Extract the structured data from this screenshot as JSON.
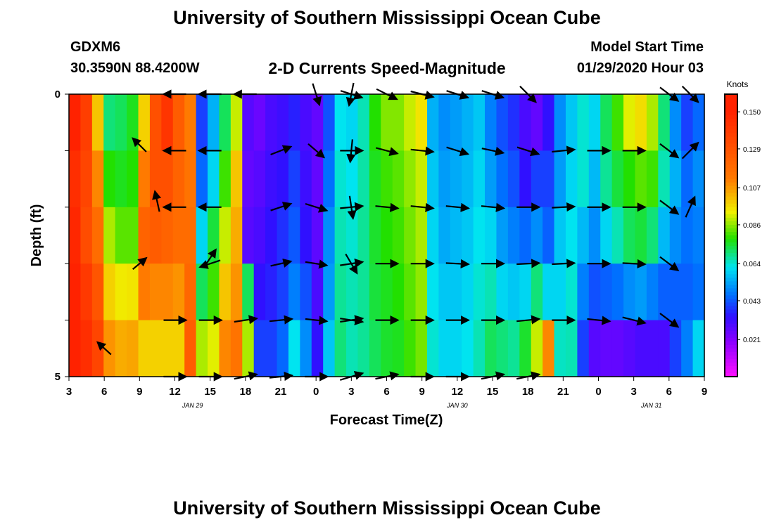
{
  "header": {
    "title": "University of Southern Mississippi Ocean Cube",
    "station_id": "GDXM6",
    "station_coords": "30.3590N 88.4200W",
    "chart_title": "2-D Currents Speed-Magnitude",
    "model_start_label": "Model Start Time",
    "model_start_value": "01/29/2020 Hour 03"
  },
  "footer": {
    "title": "University of Southern Mississippi Ocean Cube"
  },
  "chart_data": {
    "type": "heatmap",
    "title": "2-D Currents Speed-Magnitude",
    "xlabel": "Forecast Time(Z)",
    "ylabel": "Depth (ft)",
    "x_tick_labels": [
      "3",
      "6",
      "9",
      "12",
      "15",
      "18",
      "21",
      "0",
      "3",
      "6",
      "9",
      "12",
      "15",
      "18",
      "21",
      "0",
      "3",
      "6",
      "9"
    ],
    "date_labels": [
      {
        "text": "JAN 29",
        "tick_index": 3.5
      },
      {
        "text": "JAN 30",
        "tick_index": 11
      },
      {
        "text": "JAN 31",
        "tick_index": 16.5
      }
    ],
    "y_tick_labels": [
      "0",
      "5"
    ],
    "ylim": [
      0,
      5
    ],
    "colorbar": {
      "unit": "Knots",
      "labels": [
        "0.150",
        "0.129",
        "0.107",
        "0.086",
        "0.064",
        "0.043",
        "0.021"
      ],
      "range": [
        0.0,
        0.16
      ]
    },
    "colors": {
      "red": "#ff2200",
      "orange": "#ff7a00",
      "yellow": "#f0f000",
      "green": "#22e000",
      "cyan": "#00e4f0",
      "blue": "#0070ff",
      "indigo": "#3010ff",
      "purple": "#8a00ff",
      "magenta": "#ff10ff"
    },
    "rows": 5,
    "columns": [
      {
        "hour": "3",
        "speeds": [
          0.15,
          0.145,
          0.148,
          0.15,
          0.152
        ]
      },
      {
        "hour": "4",
        "speeds": [
          0.138,
          0.135,
          0.132,
          0.14,
          0.145
        ]
      },
      {
        "hour": "5",
        "speeds": [
          0.1,
          0.11,
          0.118,
          0.128,
          0.135
        ]
      },
      {
        "hour": "6",
        "speeds": [
          0.07,
          0.078,
          0.088,
          0.098,
          0.108
        ]
      },
      {
        "hour": "7",
        "speeds": [
          0.072,
          0.076,
          0.082,
          0.094,
          0.104
        ]
      },
      {
        "hour": "8",
        "speeds": [
          0.076,
          0.078,
          0.082,
          0.095,
          0.105
        ]
      },
      {
        "hour": "9",
        "speeds": [
          0.098,
          0.112,
          0.122,
          0.112,
          0.098
        ]
      },
      {
        "hour": "10",
        "speeds": [
          0.13,
          0.13,
          0.125,
          0.11,
          0.098
        ]
      },
      {
        "hour": "11",
        "speeds": [
          0.142,
          0.13,
          0.122,
          0.11,
          0.098
        ]
      },
      {
        "hour": "12",
        "speeds": [
          0.125,
          0.122,
          0.118,
          0.108,
          0.098
        ]
      },
      {
        "hour": "13",
        "speeds": [
          0.112,
          0.115,
          0.118,
          0.12,
          0.125
        ]
      },
      {
        "hour": "14",
        "speeds": [
          0.04,
          0.045,
          0.06,
          0.072,
          0.088
        ]
      },
      {
        "hour": "15",
        "speeds": [
          0.055,
          0.06,
          0.074,
          0.08,
          0.092
        ]
      },
      {
        "hour": "16",
        "speeds": [
          0.072,
          0.08,
          0.09,
          0.1,
          0.11
        ]
      },
      {
        "hour": "17",
        "speeds": [
          0.09,
          0.1,
          0.104,
          0.108,
          0.115
        ]
      },
      {
        "hour": "18",
        "speeds": [
          0.028,
          0.026,
          0.028,
          0.072,
          0.088
        ]
      },
      {
        "hour": "19",
        "speeds": [
          0.025,
          0.028,
          0.03,
          0.034,
          0.04
        ]
      },
      {
        "hour": "20",
        "speeds": [
          0.03,
          0.032,
          0.034,
          0.036,
          0.04
        ]
      },
      {
        "hour": "21",
        "speeds": [
          0.032,
          0.034,
          0.038,
          0.04,
          0.045
        ]
      },
      {
        "hour": "22",
        "speeds": [
          0.036,
          0.04,
          0.043,
          0.048,
          0.062
        ]
      },
      {
        "hour": "23",
        "speeds": [
          0.03,
          0.032,
          0.034,
          0.042,
          0.05
        ]
      },
      {
        "hour": "0",
        "speeds": [
          0.026,
          0.026,
          0.027,
          0.03,
          0.034
        ]
      },
      {
        "hour": "1",
        "speeds": [
          0.042,
          0.046,
          0.05,
          0.052,
          0.058
        ]
      },
      {
        "hour": "2",
        "speeds": [
          0.062,
          0.064,
          0.066,
          0.068,
          0.07
        ]
      },
      {
        "hour": "3",
        "speeds": [
          0.06,
          0.062,
          0.064,
          0.066,
          0.066
        ]
      },
      {
        "hour": "4",
        "speeds": [
          0.066,
          0.067,
          0.068,
          0.068,
          0.068
        ]
      },
      {
        "hour": "5",
        "speeds": [
          0.078,
          0.076,
          0.075,
          0.074,
          0.072
        ]
      },
      {
        "hour": "6",
        "speeds": [
          0.085,
          0.08,
          0.078,
          0.076,
          0.075
        ]
      },
      {
        "hour": "7",
        "speeds": [
          0.085,
          0.082,
          0.08,
          0.078,
          0.076
        ]
      },
      {
        "hour": "8",
        "speeds": [
          0.09,
          0.086,
          0.084,
          0.082,
          0.08
        ]
      },
      {
        "hour": "9",
        "speeds": [
          0.095,
          0.09,
          0.088,
          0.086,
          0.084
        ]
      },
      {
        "hour": "10",
        "speeds": [
          0.055,
          0.058,
          0.06,
          0.062,
          0.064
        ]
      },
      {
        "hour": "11",
        "speeds": [
          0.05,
          0.052,
          0.054,
          0.058,
          0.06
        ]
      },
      {
        "hour": "12",
        "speeds": [
          0.052,
          0.054,
          0.056,
          0.058,
          0.06
        ]
      },
      {
        "hour": "13",
        "speeds": [
          0.055,
          0.056,
          0.058,
          0.06,
          0.062
        ]
      },
      {
        "hour": "14",
        "speeds": [
          0.058,
          0.06,
          0.062,
          0.064,
          0.066
        ]
      },
      {
        "hour": "15",
        "speeds": [
          0.048,
          0.052,
          0.06,
          0.066,
          0.072
        ]
      },
      {
        "hour": "16",
        "speeds": [
          0.042,
          0.046,
          0.052,
          0.06,
          0.07
        ]
      },
      {
        "hour": "17",
        "speeds": [
          0.038,
          0.042,
          0.048,
          0.058,
          0.068
        ]
      },
      {
        "hour": "18",
        "speeds": [
          0.03,
          0.034,
          0.045,
          0.06,
          0.075
        ]
      },
      {
        "hour": "19",
        "speeds": [
          0.026,
          0.04,
          0.05,
          0.07,
          0.09
        ]
      },
      {
        "hour": "20",
        "speeds": [
          0.034,
          0.04,
          0.044,
          0.06,
          0.11
        ]
      },
      {
        "hour": "21",
        "speeds": [
          0.05,
          0.052,
          0.058,
          0.06,
          0.065
        ]
      },
      {
        "hour": "22",
        "speeds": [
          0.058,
          0.06,
          0.062,
          0.064,
          0.066
        ]
      },
      {
        "hour": "23",
        "speeds": [
          0.064,
          0.064,
          0.056,
          0.048,
          0.04
        ]
      },
      {
        "hour": "0",
        "speeds": [
          0.06,
          0.056,
          0.05,
          0.042,
          0.028
        ]
      },
      {
        "hour": "1",
        "speeds": [
          0.072,
          0.068,
          0.06,
          0.044,
          0.026
        ]
      },
      {
        "hour": "2",
        "speeds": [
          0.08,
          0.074,
          0.066,
          0.046,
          0.026
        ]
      },
      {
        "hour": "3",
        "speeds": [
          0.092,
          0.078,
          0.072,
          0.05,
          0.028
        ]
      },
      {
        "hour": "4",
        "speeds": [
          0.096,
          0.082,
          0.074,
          0.052,
          0.03
        ]
      },
      {
        "hour": "5",
        "speeds": [
          0.088,
          0.08,
          0.07,
          0.048,
          0.03
        ]
      },
      {
        "hour": "6",
        "speeds": [
          0.07,
          0.066,
          0.056,
          0.044,
          0.03
        ]
      },
      {
        "hour": "7",
        "speeds": [
          0.05,
          0.055,
          0.05,
          0.044,
          0.04
        ]
      },
      {
        "hour": "8",
        "speeds": [
          0.04,
          0.045,
          0.046,
          0.044,
          0.048
        ]
      },
      {
        "hour": "9",
        "speeds": [
          0.045,
          0.05,
          0.048,
          0.046,
          0.06
        ]
      }
    ],
    "vectors": [
      {
        "t": 1.0,
        "d": 4.5,
        "u": -0.6,
        "v": 0.55
      },
      {
        "t": 2.0,
        "d": 0.9,
        "u": -0.6,
        "v": 0.6
      },
      {
        "t": 2.0,
        "d": 3.0,
        "u": 0.6,
        "v": 0.5
      },
      {
        "t": 2.5,
        "d": 1.9,
        "u": -0.2,
        "v": 0.9
      },
      {
        "t": 3.0,
        "d": 0.0,
        "u": -1,
        "v": 0
      },
      {
        "t": 3.0,
        "d": 1.0,
        "u": -1,
        "v": 0
      },
      {
        "t": 3.0,
        "d": 2.0,
        "u": -1,
        "v": 0
      },
      {
        "t": 3.0,
        "d": 4.0,
        "u": 1,
        "v": 0
      },
      {
        "t": 3.0,
        "d": 5.0,
        "u": 1,
        "v": 0
      },
      {
        "t": 4.0,
        "d": 0.0,
        "u": -1,
        "v": 0
      },
      {
        "t": 4.0,
        "d": 1.0,
        "u": -1,
        "v": 0
      },
      {
        "t": 4.0,
        "d": 2.0,
        "u": -1,
        "v": 0
      },
      {
        "t": 4.0,
        "d": 3.0,
        "u": -0.9,
        "v": -0.3
      },
      {
        "t": 4.0,
        "d": 2.9,
        "u": 0.5,
        "v": 0.75
      },
      {
        "t": 4.0,
        "d": 4.0,
        "u": 1,
        "v": 0
      },
      {
        "t": 4.0,
        "d": 5.0,
        "u": 1,
        "v": 0
      },
      {
        "t": 5.0,
        "d": 0.0,
        "u": -1,
        "v": 0
      },
      {
        "t": 5.0,
        "d": 4.0,
        "u": 1,
        "v": 0.15
      },
      {
        "t": 5.0,
        "d": 5.0,
        "u": 1,
        "v": 0.2
      },
      {
        "t": 6.0,
        "d": 1.0,
        "u": 0.9,
        "v": 0.35
      },
      {
        "t": 6.0,
        "d": 2.0,
        "u": 0.9,
        "v": 0.3
      },
      {
        "t": 6.0,
        "d": 3.0,
        "u": 0.9,
        "v": 0.2
      },
      {
        "t": 6.0,
        "d": 4.0,
        "u": 1,
        "v": 0.1
      },
      {
        "t": 6.0,
        "d": 5.0,
        "u": 1,
        "v": 0.1
      },
      {
        "t": 7.0,
        "d": 0.0,
        "u": 0.3,
        "v": -0.95
      },
      {
        "t": 7.0,
        "d": 1.0,
        "u": 0.7,
        "v": -0.6
      },
      {
        "t": 7.0,
        "d": 2.0,
        "u": 0.95,
        "v": -0.3
      },
      {
        "t": 7.0,
        "d": 3.0,
        "u": 0.95,
        "v": -0.15
      },
      {
        "t": 7.0,
        "d": 4.0,
        "u": 0.95,
        "v": -0.1
      },
      {
        "t": 7.0,
        "d": 5.0,
        "u": 1,
        "v": 0
      },
      {
        "t": 8.0,
        "d": 0.0,
        "u": 0.95,
        "v": -0.3
      },
      {
        "t": 8.0,
        "d": 1.0,
        "u": 1,
        "v": 0
      },
      {
        "t": 8.0,
        "d": 2.0,
        "u": 1,
        "v": 0.1
      },
      {
        "t": 8.0,
        "d": 3.0,
        "u": 1,
        "v": 0.15
      },
      {
        "t": 8.0,
        "d": 4.0,
        "u": 1,
        "v": 0.15
      },
      {
        "t": 8.0,
        "d": 5.0,
        "u": 1,
        "v": 0.3
      },
      {
        "t": 8.0,
        "d": 1.0,
        "u": -0.1,
        "v": -1
      },
      {
        "t": 8.0,
        "d": 0.0,
        "u": -0.2,
        "v": -1
      },
      {
        "t": 8.0,
        "d": 2.0,
        "u": 0.15,
        "v": -1
      },
      {
        "t": 8.0,
        "d": 3.0,
        "u": 0.5,
        "v": -0.85
      },
      {
        "t": 8.0,
        "d": 4.0,
        "u": 1,
        "v": -0.15
      },
      {
        "t": 9.0,
        "d": 0.0,
        "u": 0.9,
        "v": -0.45
      },
      {
        "t": 9.0,
        "d": 1.0,
        "u": 0.95,
        "v": -0.25
      },
      {
        "t": 9.0,
        "d": 2.0,
        "u": 1,
        "v": -0.1
      },
      {
        "t": 9.0,
        "d": 3.0,
        "u": 1,
        "v": 0
      },
      {
        "t": 9.0,
        "d": 4.0,
        "u": 1,
        "v": 0
      },
      {
        "t": 9.0,
        "d": 5.0,
        "u": 1,
        "v": 0.2
      },
      {
        "t": 10.0,
        "d": 0.0,
        "u": 1,
        "v": -0.25
      },
      {
        "t": 10.0,
        "d": 1.0,
        "u": 1,
        "v": -0.1
      },
      {
        "t": 10.0,
        "d": 2.0,
        "u": 1,
        "v": -0.1
      },
      {
        "t": 10.0,
        "d": 3.0,
        "u": 1,
        "v": 0
      },
      {
        "t": 10.0,
        "d": 4.0,
        "u": 1,
        "v": 0
      },
      {
        "t": 10.0,
        "d": 5.0,
        "u": 1,
        "v": 0
      },
      {
        "t": 11.0,
        "d": 0.0,
        "u": 0.95,
        "v": -0.3
      },
      {
        "t": 11.0,
        "d": 1.0,
        "u": 0.95,
        "v": -0.3
      },
      {
        "t": 11.0,
        "d": 2.0,
        "u": 1,
        "v": -0.1
      },
      {
        "t": 11.0,
        "d": 3.0,
        "u": 1,
        "v": -0.05
      },
      {
        "t": 11.0,
        "d": 4.0,
        "u": 1,
        "v": 0
      },
      {
        "t": 11.0,
        "d": 5.0,
        "u": 1,
        "v": 0
      },
      {
        "t": 12.0,
        "d": 0.0,
        "u": 0.95,
        "v": -0.3
      },
      {
        "t": 12.0,
        "d": 1.0,
        "u": 0.95,
        "v": -0.2
      },
      {
        "t": 12.0,
        "d": 2.0,
        "u": 1,
        "v": -0.1
      },
      {
        "t": 12.0,
        "d": 3.0,
        "u": 1,
        "v": 0
      },
      {
        "t": 12.0,
        "d": 4.0,
        "u": 1,
        "v": 0
      },
      {
        "t": 12.0,
        "d": 5.0,
        "u": 1,
        "v": 0.2
      },
      {
        "t": 13.0,
        "d": 0.0,
        "u": 0.7,
        "v": -0.7
      },
      {
        "t": 13.0,
        "d": 1.0,
        "u": 0.95,
        "v": -0.3
      },
      {
        "t": 13.0,
        "d": 2.0,
        "u": 1,
        "v": 0
      },
      {
        "t": 13.0,
        "d": 3.0,
        "u": 1,
        "v": 0.05
      },
      {
        "t": 13.0,
        "d": 4.0,
        "u": 1,
        "v": 0.1
      },
      {
        "t": 13.0,
        "d": 5.0,
        "u": 1,
        "v": 0.2
      },
      {
        "t": 14.0,
        "d": 1.0,
        "u": 1,
        "v": 0.1
      },
      {
        "t": 14.0,
        "d": 2.0,
        "u": 1,
        "v": 0.05
      },
      {
        "t": 14.0,
        "d": 3.0,
        "u": 1,
        "v": 0.05
      },
      {
        "t": 14.0,
        "d": 4.0,
        "u": 1,
        "v": 0
      },
      {
        "t": 15.0,
        "d": 1.0,
        "u": 1,
        "v": 0
      },
      {
        "t": 15.0,
        "d": 2.0,
        "u": 1,
        "v": 0
      },
      {
        "t": 15.0,
        "d": 3.0,
        "u": 1,
        "v": 0
      },
      {
        "t": 15.0,
        "d": 4.0,
        "u": 1,
        "v": -0.1
      },
      {
        "t": 16.0,
        "d": 1.0,
        "u": 1,
        "v": 0
      },
      {
        "t": 16.0,
        "d": 2.0,
        "u": 1,
        "v": 0
      },
      {
        "t": 16.0,
        "d": 3.0,
        "u": 1,
        "v": -0.05
      },
      {
        "t": 16.0,
        "d": 4.0,
        "u": 1,
        "v": -0.25
      },
      {
        "t": 17.0,
        "d": 0.0,
        "u": 0.8,
        "v": -0.6
      },
      {
        "t": 17.0,
        "d": 1.0,
        "u": 0.8,
        "v": -0.6
      },
      {
        "t": 17.0,
        "d": 2.0,
        "u": 0.8,
        "v": -0.6
      },
      {
        "t": 17.0,
        "d": 3.0,
        "u": 0.8,
        "v": -0.6
      },
      {
        "t": 17.0,
        "d": 4.0,
        "u": 0.8,
        "v": -0.6
      },
      {
        "t": 17.6,
        "d": 0.0,
        "u": 0.7,
        "v": -0.7
      },
      {
        "t": 17.6,
        "d": 1.0,
        "u": 0.7,
        "v": 0.7
      },
      {
        "t": 17.6,
        "d": 2.0,
        "u": 0.4,
        "v": 0.9
      }
    ]
  }
}
